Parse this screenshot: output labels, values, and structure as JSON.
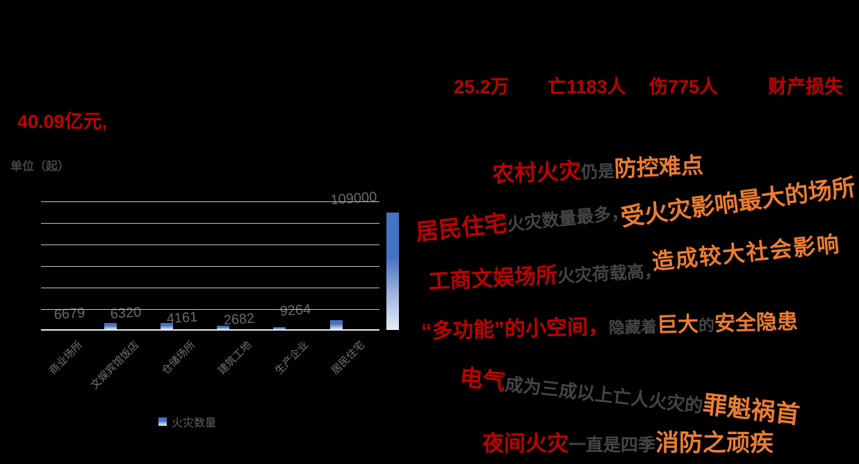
{
  "colors": {
    "red": "#c00000",
    "orange": "#ed7d31",
    "gray": "#454545",
    "bar_blue_top": "#4472c4",
    "bar_blue_bottom": "#e7ecf8",
    "background": "#000000"
  },
  "stats": {
    "fires_count": "25.2万",
    "deaths": "亡1183人",
    "injuries": "伤775人",
    "loss_label": "财产损失",
    "loss_value": "40.09亿元,"
  },
  "chart": {
    "unit_label": "单位（起）",
    "legend_label": "火灾数量"
  },
  "chart_data": {
    "type": "bar",
    "title": "",
    "categories": [
      "商业场所",
      "文娱宾馆饭店",
      "仓储场所",
      "建筑工地",
      "生产企业",
      "居民住宅"
    ],
    "values": [
      6679,
      6320,
      4161,
      2682,
      9264,
      109000
    ],
    "series_name": "火灾数量",
    "unit": "单位（起）",
    "ylabel": "",
    "xlabel": "",
    "ylim": [
      0,
      120000
    ],
    "gridline_interval": 20000,
    "grid": true,
    "legend_position": "bottom",
    "bar_gradient": [
      "#4472c4",
      "#e7ecf8"
    ],
    "value_labels_shown": true
  },
  "insights": {
    "line1": {
      "a": "农村火灾",
      "b": "仍是",
      "c": "防控难点"
    },
    "line2a": {
      "a": "居民住宅",
      "b": "火灾数量最多，"
    },
    "line2b": {
      "a": "受火灾影响最大的场所"
    },
    "line3a": {
      "a": "工商文娱场所",
      "b": "火灾荷载高，"
    },
    "line3b": {
      "a": "造成较大社会影响"
    },
    "line4": {
      "a": "“多功能”的小空间，",
      "b": "隐藏着",
      "c": "巨大",
      "d": "的",
      "e": "安全隐患"
    },
    "line5": {
      "a": "电气",
      "b": "成为三成以上亡人火灾的",
      "c": "罪魁祸首"
    },
    "line6": {
      "a": "夜间火灾",
      "b": "一直是四季",
      "c": "消防之顽疾"
    }
  }
}
